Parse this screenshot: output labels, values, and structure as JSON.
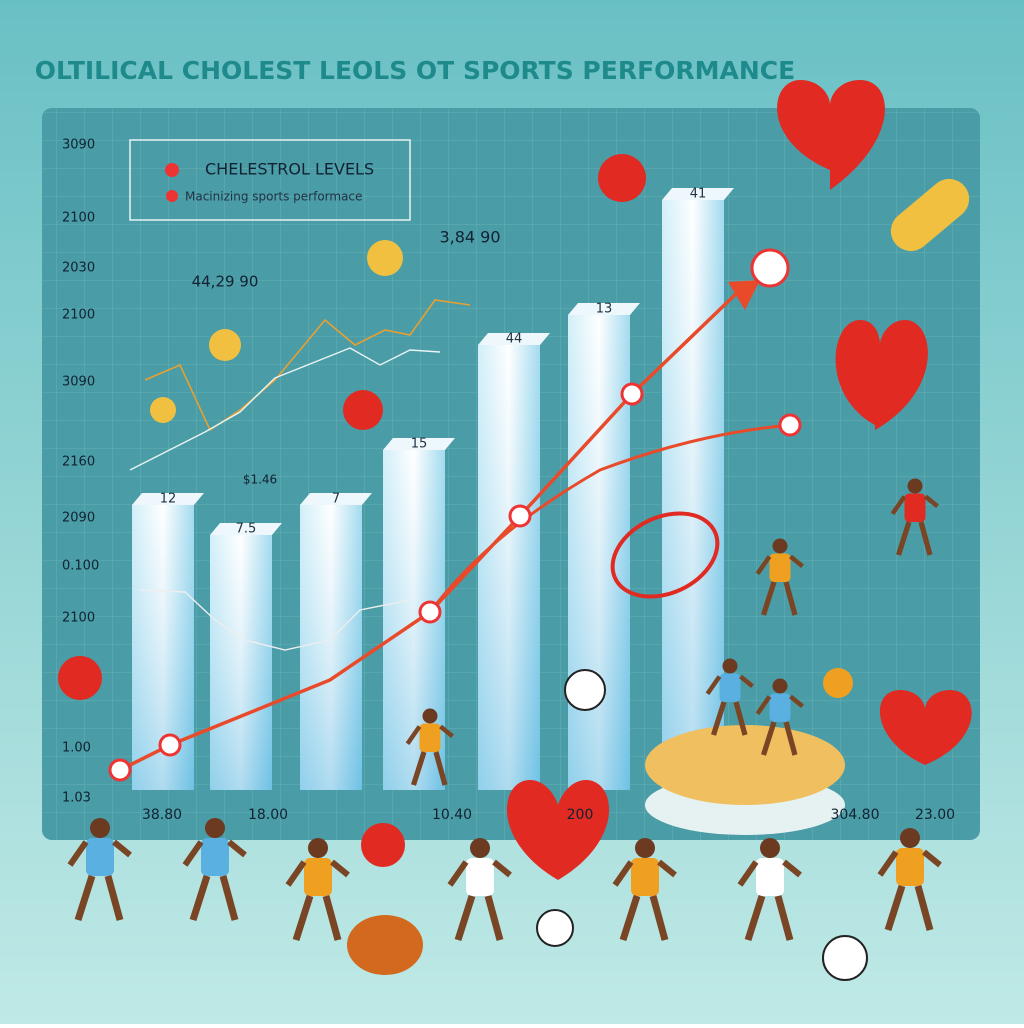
{
  "title": "OLTILICAL CHOLEST LEOLS OT SPORTS PERFORMANCE",
  "legend": [
    "CHELESTROL LEVELS",
    "Macinizing sports performace"
  ],
  "y_axis_labels": [
    "3090",
    "2100",
    "2030",
    "2100",
    "3090",
    "2160",
    "2090",
    "0.100",
    "2100",
    "1.00",
    "1.03"
  ],
  "x_axis_labels": [
    "38.80",
    "18.00",
    "10.40",
    "200",
    "304.80",
    "23.00"
  ],
  "bar_labels": [
    "12",
    "7.5",
    "7",
    "15",
    "44",
    "13",
    "41"
  ],
  "annotations": [
    "44,29 90",
    "3,84 90",
    "$1.46"
  ]
}
